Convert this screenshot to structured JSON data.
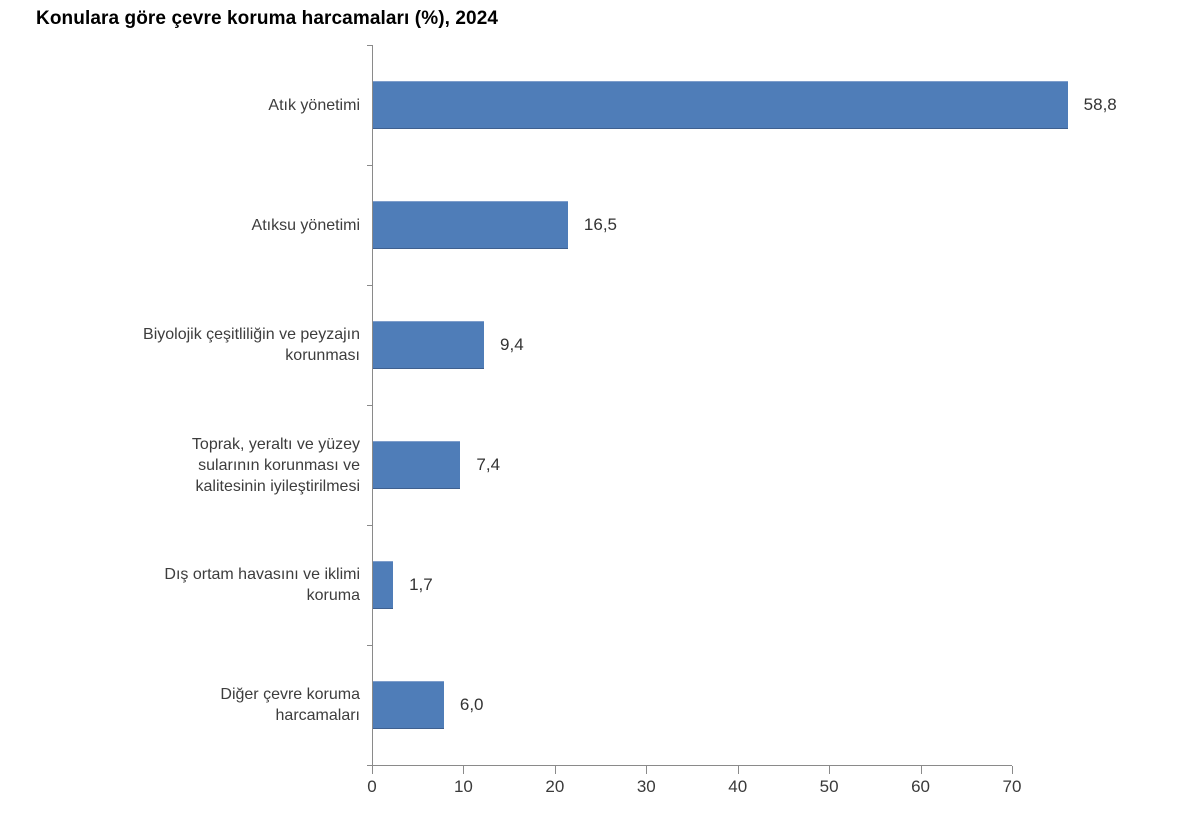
{
  "chart_data": {
    "type": "bar",
    "orientation": "horizontal",
    "title": "Konulara göre çevre koruma harcamaları (%), 2024",
    "xlabel": "",
    "ylabel": "",
    "xlim": [
      0,
      70
    ],
    "x_ticks": [
      0,
      10,
      20,
      30,
      40,
      50,
      60,
      70
    ],
    "grid": false,
    "legend": false,
    "bar_color": "#4f7db8",
    "axis_color": "#8a8a8a",
    "text_color": "#3d3d3d",
    "decimal_separator": ",",
    "categories": [
      "Atık yönetimi",
      "Atıksu yönetimi",
      "Biyolojik çeşitliliğin ve peyzajın korunması",
      "Toprak, yeraltı ve yüzey sularının korunması ve kalitesinin iyileştirilmesi",
      "Dış ortam havasını ve iklimi koruma",
      "Diğer çevre koruma harcamaları"
    ],
    "values": [
      58.8,
      16.5,
      9.4,
      7.4,
      1.7,
      6.0
    ],
    "bars": [
      {
        "label_lines": [
          "Atık yönetimi"
        ],
        "value": 58.8,
        "value_label": "58,8"
      },
      {
        "label_lines": [
          "Atıksu yönetimi"
        ],
        "value": 16.5,
        "value_label": "16,5"
      },
      {
        "label_lines": [
          "Biyolojik çeşitliliğin ve peyzajın",
          "korunması"
        ],
        "value": 9.4,
        "value_label": "9,4"
      },
      {
        "label_lines": [
          "Toprak, yeraltı ve yüzey",
          "sularının korunması ve",
          "kalitesinin iyileştirilmesi"
        ],
        "value": 7.4,
        "value_label": "7,4"
      },
      {
        "label_lines": [
          "Dış ortam havasını ve iklimi",
          "koruma"
        ],
        "value": 1.7,
        "value_label": "1,7"
      },
      {
        "label_lines": [
          "Diğer çevre koruma",
          "harcamaları"
        ],
        "value": 6.0,
        "value_label": "6,0"
      }
    ]
  }
}
